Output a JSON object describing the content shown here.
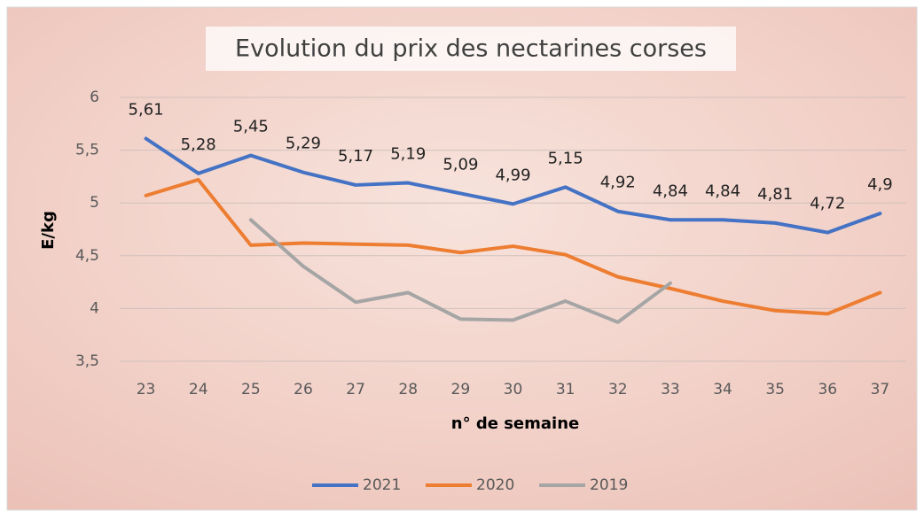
{
  "chart_data": {
    "type": "line",
    "title": "Evolution du prix des nectarines corses",
    "x_label": "n° de semaine",
    "y_label": "E/kg",
    "x": [
      23,
      24,
      25,
      26,
      27,
      28,
      29,
      30,
      31,
      32,
      33,
      34,
      35,
      36,
      37
    ],
    "xlim": [
      22.5,
      37.5
    ],
    "xticks": [
      23,
      24,
      25,
      26,
      27,
      28,
      29,
      30,
      31,
      32,
      33,
      34,
      35,
      36,
      37
    ],
    "ylim": [
      3.5,
      6
    ],
    "yticks": [
      {
        "value": 3.5,
        "label": "3,5"
      },
      4,
      {
        "value": 4.5,
        "label": "4,5"
      },
      5,
      {
        "value": 5.5,
        "label": "5,5"
      },
      6
    ],
    "grid": true,
    "legend": "bottom",
    "series": [
      {
        "name": "2021",
        "color": "#4472c4",
        "values": [
          5.61,
          5.28,
          5.45,
          5.29,
          5.17,
          5.19,
          5.09,
          4.99,
          5.15,
          4.92,
          4.84,
          4.84,
          4.81,
          4.72,
          4.9
        ],
        "value_labels": [
          "5,61",
          "5,28",
          "5,45",
          "5,29",
          "5,17",
          "5,19",
          "5,09",
          "4,99",
          "5,15",
          "4,92",
          "4,84",
          "4,84",
          "4,81",
          "4,72",
          "4,9"
        ]
      },
      {
        "name": "2020",
        "color": "#ed7d31",
        "values": [
          5.07,
          5.22,
          4.6,
          4.62,
          4.61,
          4.6,
          4.53,
          4.59,
          4.51,
          4.3,
          4.19,
          4.07,
          3.98,
          3.95,
          4.15
        ]
      },
      {
        "name": "2019",
        "color": "#a5a5a5",
        "values": [
          null,
          null,
          4.84,
          4.4,
          4.06,
          4.15,
          3.9,
          3.89,
          4.07,
          3.87,
          4.24,
          null,
          null,
          null,
          null
        ]
      }
    ]
  }
}
